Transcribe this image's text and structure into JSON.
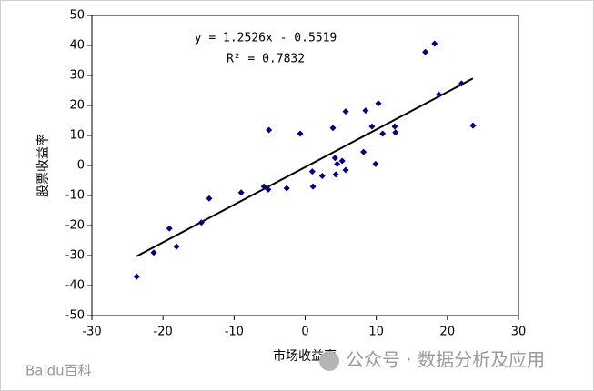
{
  "chart_data": {
    "type": "scatter",
    "x_label": "市场收益率",
    "y_label": "股票收益率",
    "x": [
      -23.7,
      -21.3,
      -19.1,
      -18.1,
      -14.6,
      -13.5,
      -9,
      -5.8,
      -5.2,
      -5.1,
      -2.6,
      -0.7,
      1,
      1.1,
      2.4,
      3.9,
      4.2,
      4.3,
      4.5,
      5.2,
      5.7,
      5.7,
      8.2,
      8.5,
      9.4,
      9.9,
      10.3,
      10.9,
      12.6,
      12.7,
      16.9,
      18.2,
      18.8,
      22,
      23.6
    ],
    "y": [
      -37,
      -29,
      -21,
      -27,
      -19,
      -11,
      -9,
      -7,
      -8,
      11.8,
      -7.6,
      10.6,
      -2,
      -7,
      -3.5,
      12.5,
      2.5,
      -3,
      0.5,
      1.5,
      18,
      -1.5,
      4.5,
      18.3,
      13,
      0.5,
      20.7,
      10.6,
      13,
      11,
      37.8,
      40.6,
      23.6,
      27.3,
      13.3
    ],
    "color": "#000080",
    "trendline": {
      "label": "y = 1.2526x - 0.5519",
      "slope": 1.2526,
      "intercept": -0.5519,
      "r_squared_label": "R² = 0.7832",
      "color": "#000000"
    },
    "xlim": [
      -30,
      30
    ],
    "xticks": [
      -30,
      -20,
      -10,
      0,
      10,
      20,
      30
    ],
    "ylim": [
      -50,
      50
    ],
    "yticks": [
      -50,
      -40,
      -30,
      -20,
      -10,
      0,
      10,
      20,
      30,
      40,
      50
    ],
    "grid": false
  },
  "watermarks": [
    "Baidu百科",
    "公众号 · 数据分析及应用"
  ]
}
